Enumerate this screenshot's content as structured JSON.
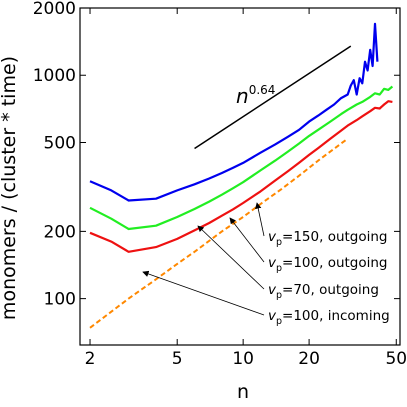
{
  "chart_data": {
    "type": "line",
    "title": "",
    "xlabel": "n",
    "ylabel": "monomers / (cluster * time)",
    "xscale": "log",
    "yscale": "log",
    "xlim": [
      1.8,
      52
    ],
    "ylim": [
      62,
      2000
    ],
    "grid": false,
    "xticks": [
      2,
      5,
      10,
      20,
      50
    ],
    "xtick_labels": [
      "2",
      "5",
      "10",
      "20",
      "50"
    ],
    "yticks": [
      100,
      200,
      500,
      1000,
      2000
    ],
    "ytick_labels": [
      "100",
      "200",
      "500",
      "1000",
      "2000"
    ],
    "series": [
      {
        "name": "v_p=150, outgoing",
        "label_main": "v",
        "label_sub": "p",
        "label_rest": "=150, outgoing",
        "color": "#0000ee",
        "style": "solid",
        "x": [
          2,
          2.5,
          3,
          4,
          5,
          6,
          7,
          8,
          9,
          10,
          12,
          14,
          16,
          18,
          20,
          22,
          24,
          26,
          28,
          30,
          31,
          32,
          33,
          34,
          35,
          36,
          37,
          38,
          39,
          40,
          41
        ],
        "y": [
          335,
          305,
          275,
          280,
          305,
          325,
          345,
          365,
          385,
          405,
          450,
          490,
          530,
          570,
          620,
          660,
          700,
          740,
          790,
          820,
          900,
          950,
          820,
          970,
          920,
          1150,
          1050,
          1300,
          1100,
          1700,
          1150
        ]
      },
      {
        "name": "v_p=100, outgoing",
        "label_main": "v",
        "label_sub": "p",
        "label_rest": "=100, outgoing",
        "color": "#22ee22",
        "style": "solid",
        "x": [
          2,
          2.5,
          3,
          4,
          5,
          6,
          7,
          8,
          9,
          10,
          12,
          14,
          16,
          18,
          20,
          22,
          25,
          28,
          30,
          33,
          35,
          38,
          40,
          42,
          44,
          46,
          48
        ],
        "y": [
          255,
          228,
          205,
          212,
          232,
          252,
          272,
          292,
          312,
          332,
          375,
          415,
          455,
          495,
          535,
          570,
          620,
          670,
          700,
          740,
          760,
          800,
          830,
          820,
          870,
          860,
          890
        ]
      },
      {
        "name": "v_p=70, outgoing",
        "label_main": "v",
        "label_sub": "p",
        "label_rest": "=70, outgoing",
        "color": "#ee1111",
        "style": "solid",
        "x": [
          2,
          2.5,
          3,
          4,
          5,
          6,
          7,
          8,
          9,
          10,
          12,
          14,
          16,
          18,
          20,
          22,
          25,
          28,
          30,
          33,
          35,
          38,
          40,
          42,
          44,
          46,
          48
        ],
        "y": [
          197,
          180,
          162,
          170,
          185,
          202,
          218,
          235,
          251,
          268,
          302,
          338,
          372,
          406,
          440,
          472,
          520,
          565,
          595,
          630,
          655,
          690,
          715,
          710,
          740,
          765,
          760
        ]
      },
      {
        "name": "v_p=100, incoming",
        "label_main": "v",
        "label_sub": "p",
        "label_rest": "=100, incoming",
        "color": "#ff8800",
        "style": "dashed",
        "x": [
          2,
          3,
          4,
          5,
          6,
          8,
          10,
          12,
          15,
          18,
          20,
          22,
          25,
          28,
          30
        ],
        "y": [
          74,
          100,
          122,
          143,
          162,
          200,
          232,
          265,
          310,
          355,
          385,
          415,
          455,
          495,
          520
        ]
      }
    ],
    "reference_line": {
      "exponent_base": "n",
      "exponent": "0.64",
      "x": [
        6,
        31
      ],
      "y": [
        470,
        1350
      ],
      "color": "#000000"
    }
  }
}
